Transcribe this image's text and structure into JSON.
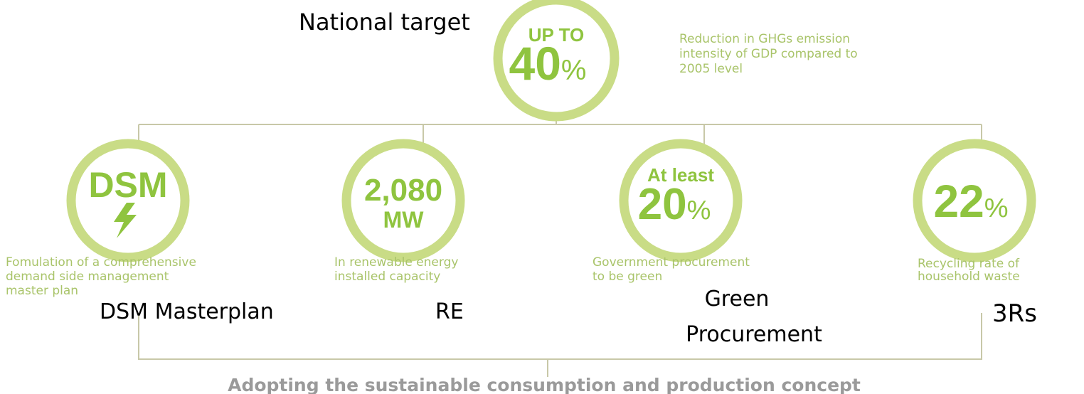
{
  "title": "National target",
  "top": {
    "heading": "UP TO",
    "value": "40",
    "unit": "%",
    "description": [
      "Reduction in GHGs emission",
      "intensity of GDP compared to",
      "2005 level"
    ]
  },
  "targets": [
    {
      "line1": "DSM",
      "description": [
        "Fomulation of a comprehensive",
        "demand side management",
        "master plan"
      ],
      "label": [
        "DSM Masterplan"
      ]
    },
    {
      "line1": "2,080",
      "line2": "MW",
      "description": [
        "In renewable energy",
        "installed capacity"
      ],
      "label": [
        "RE"
      ]
    },
    {
      "small": "At least",
      "value": "20",
      "unit": "%",
      "description": [
        "Government procurement",
        "to be green"
      ],
      "label": [
        "Green",
        "Procurement"
      ]
    },
    {
      "value": "22",
      "unit": "%",
      "description": [
        "Recycling rate of",
        "household waste"
      ],
      "label": [
        "3Rs"
      ]
    }
  ],
  "footer": "Adopting the sustainable consumption and production concept"
}
